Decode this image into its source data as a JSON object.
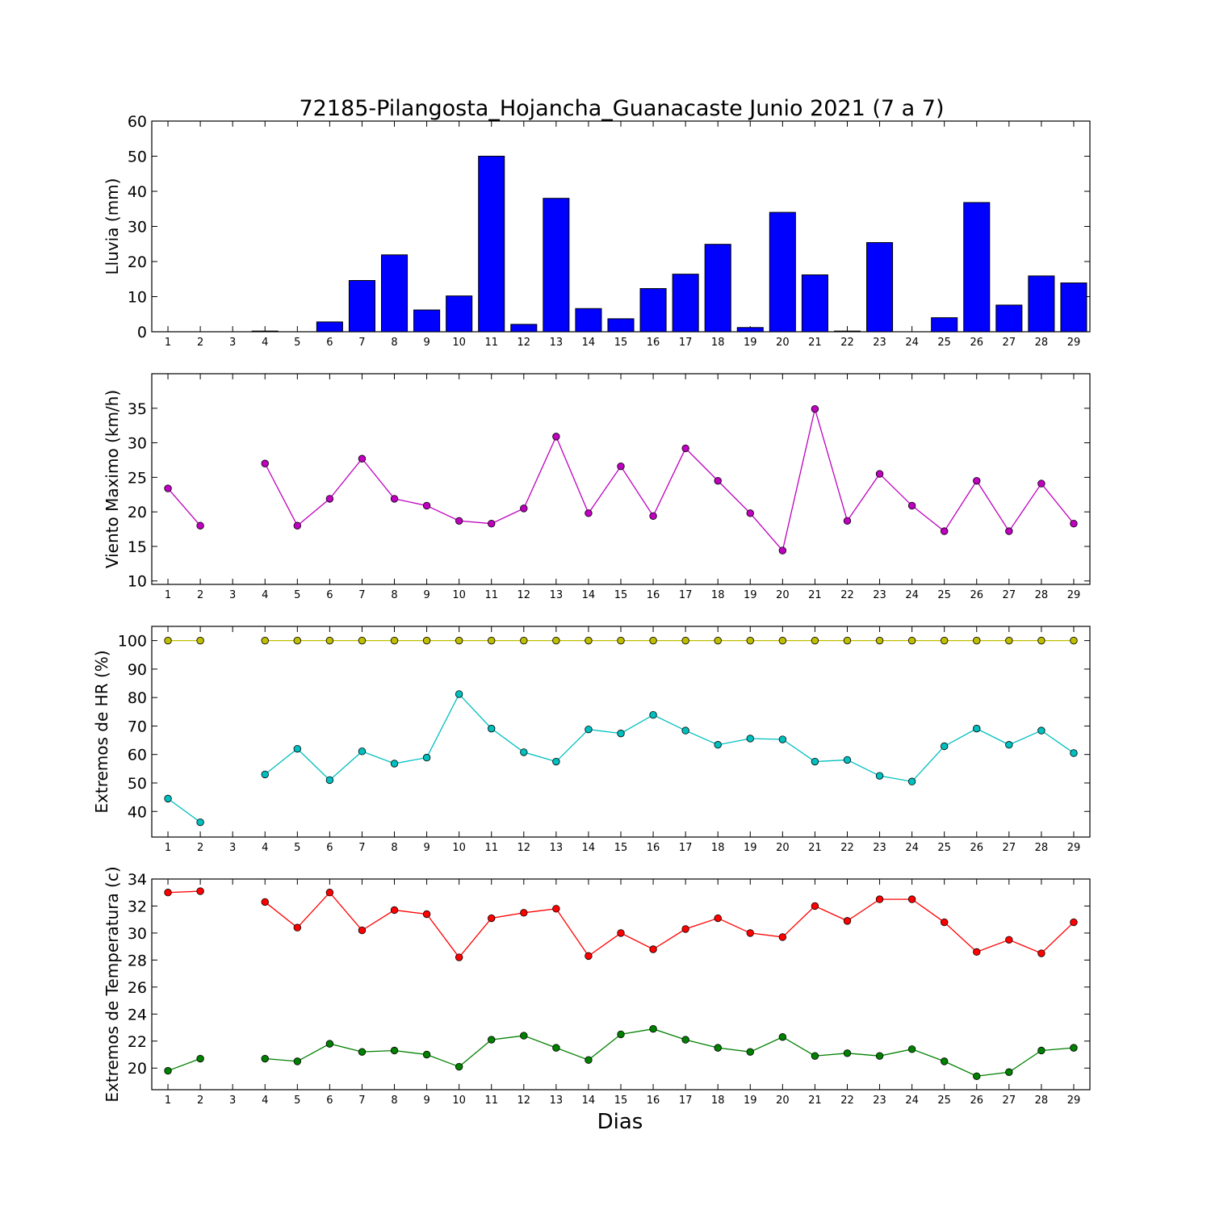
{
  "title": "72185-Pilangosta_Hojancha_Guanacaste Junio 2021  (7 a 7)",
  "xlabel": "Dias",
  "chart_data": [
    {
      "id": "lluvia",
      "type": "bar",
      "ylabel": "Lluvia (mm)",
      "ylim": [
        0,
        60
      ],
      "yticks": [
        0,
        10,
        20,
        30,
        40,
        50,
        60
      ],
      "x": [
        1,
        2,
        3,
        4,
        5,
        6,
        7,
        8,
        9,
        10,
        11,
        12,
        13,
        14,
        15,
        16,
        17,
        18,
        19,
        20,
        21,
        22,
        23,
        24,
        25,
        26,
        27,
        28,
        29
      ],
      "series": [
        {
          "color": "#0000ff",
          "values": [
            0,
            0,
            0,
            0.2,
            0,
            2.8,
            14.6,
            21.9,
            6.2,
            10.2,
            50,
            2.1,
            38,
            6.6,
            3.7,
            12.3,
            16.4,
            24.9,
            1.2,
            34,
            16.2,
            0.2,
            25.4,
            0,
            4,
            36.8,
            7.6,
            15.9,
            13.9
          ]
        }
      ]
    },
    {
      "id": "viento",
      "type": "line",
      "ylabel": "Viento Maximo (km/h)",
      "ylim": [
        9.5,
        40
      ],
      "yticks": [
        10,
        15,
        20,
        25,
        30,
        35
      ],
      "x": [
        1,
        2,
        3,
        4,
        5,
        6,
        7,
        8,
        9,
        10,
        11,
        12,
        13,
        14,
        15,
        16,
        17,
        18,
        19,
        20,
        21,
        22,
        23,
        24,
        25,
        26,
        27,
        28,
        29
      ],
      "series": [
        {
          "color": "#bf00bf",
          "values": [
            23.4,
            18,
            null,
            27,
            18,
            21.9,
            27.7,
            21.9,
            20.9,
            18.7,
            18.3,
            20.5,
            30.9,
            19.8,
            26.6,
            19.4,
            29.2,
            24.5,
            19.8,
            14.4,
            34.9,
            18.7,
            25.5,
            20.9,
            17.2,
            24.5,
            17.2,
            24.1,
            18.3
          ]
        }
      ]
    },
    {
      "id": "hr",
      "type": "line",
      "ylabel": "Extremos de HR (%)",
      "ylim": [
        31,
        105
      ],
      "yticks": [
        40,
        50,
        60,
        70,
        80,
        90,
        100
      ],
      "x": [
        1,
        2,
        3,
        4,
        5,
        6,
        7,
        8,
        9,
        10,
        11,
        12,
        13,
        14,
        15,
        16,
        17,
        18,
        19,
        20,
        21,
        22,
        23,
        24,
        25,
        26,
        27,
        28,
        29
      ],
      "series": [
        {
          "color": "#bfbf00",
          "values": [
            100,
            100,
            null,
            100,
            100,
            100,
            100,
            100,
            100,
            100,
            100,
            100,
            100,
            100,
            100,
            100,
            100,
            100,
            100,
            100,
            100,
            100,
            100,
            100,
            100,
            100,
            100,
            100,
            100
          ]
        },
        {
          "color": "#00bfbf",
          "values": [
            44.5,
            36.2,
            null,
            53,
            62,
            51,
            61.1,
            56.8,
            58.9,
            81.2,
            69.1,
            60.8,
            57.5,
            68.8,
            67.4,
            73.9,
            68.4,
            63.4,
            65.6,
            65.3,
            57.5,
            58.1,
            52.5,
            50.5,
            62.9,
            69.1,
            63.4,
            68.4,
            60.5
          ]
        }
      ]
    },
    {
      "id": "temperatura",
      "type": "line",
      "ylabel": "Extremos de Temperatura (c)",
      "ylim": [
        18.4,
        34
      ],
      "yticks": [
        20,
        22,
        24,
        26,
        28,
        30,
        32,
        34
      ],
      "x": [
        1,
        2,
        3,
        4,
        5,
        6,
        7,
        8,
        9,
        10,
        11,
        12,
        13,
        14,
        15,
        16,
        17,
        18,
        19,
        20,
        21,
        22,
        23,
        24,
        25,
        26,
        27,
        28,
        29
      ],
      "series": [
        {
          "color": "#ff0000",
          "values": [
            33,
            33.1,
            null,
            32.3,
            30.4,
            33,
            30.2,
            31.7,
            31.4,
            28.2,
            31.1,
            31.5,
            31.8,
            28.3,
            30,
            28.8,
            30.3,
            31.1,
            30,
            29.7,
            32,
            30.9,
            32.5,
            32.5,
            30.8,
            28.6,
            29.5,
            28.5,
            30.8
          ]
        },
        {
          "color": "#008000",
          "values": [
            19.8,
            20.7,
            null,
            20.7,
            20.5,
            21.8,
            21.2,
            21.3,
            21,
            20.1,
            22.1,
            22.4,
            21.5,
            20.6,
            22.5,
            22.9,
            22.1,
            21.5,
            21.2,
            22.3,
            20.9,
            21.1,
            20.9,
            21.4,
            20.5,
            19.4,
            19.7,
            21.3,
            21.5
          ]
        }
      ]
    }
  ]
}
